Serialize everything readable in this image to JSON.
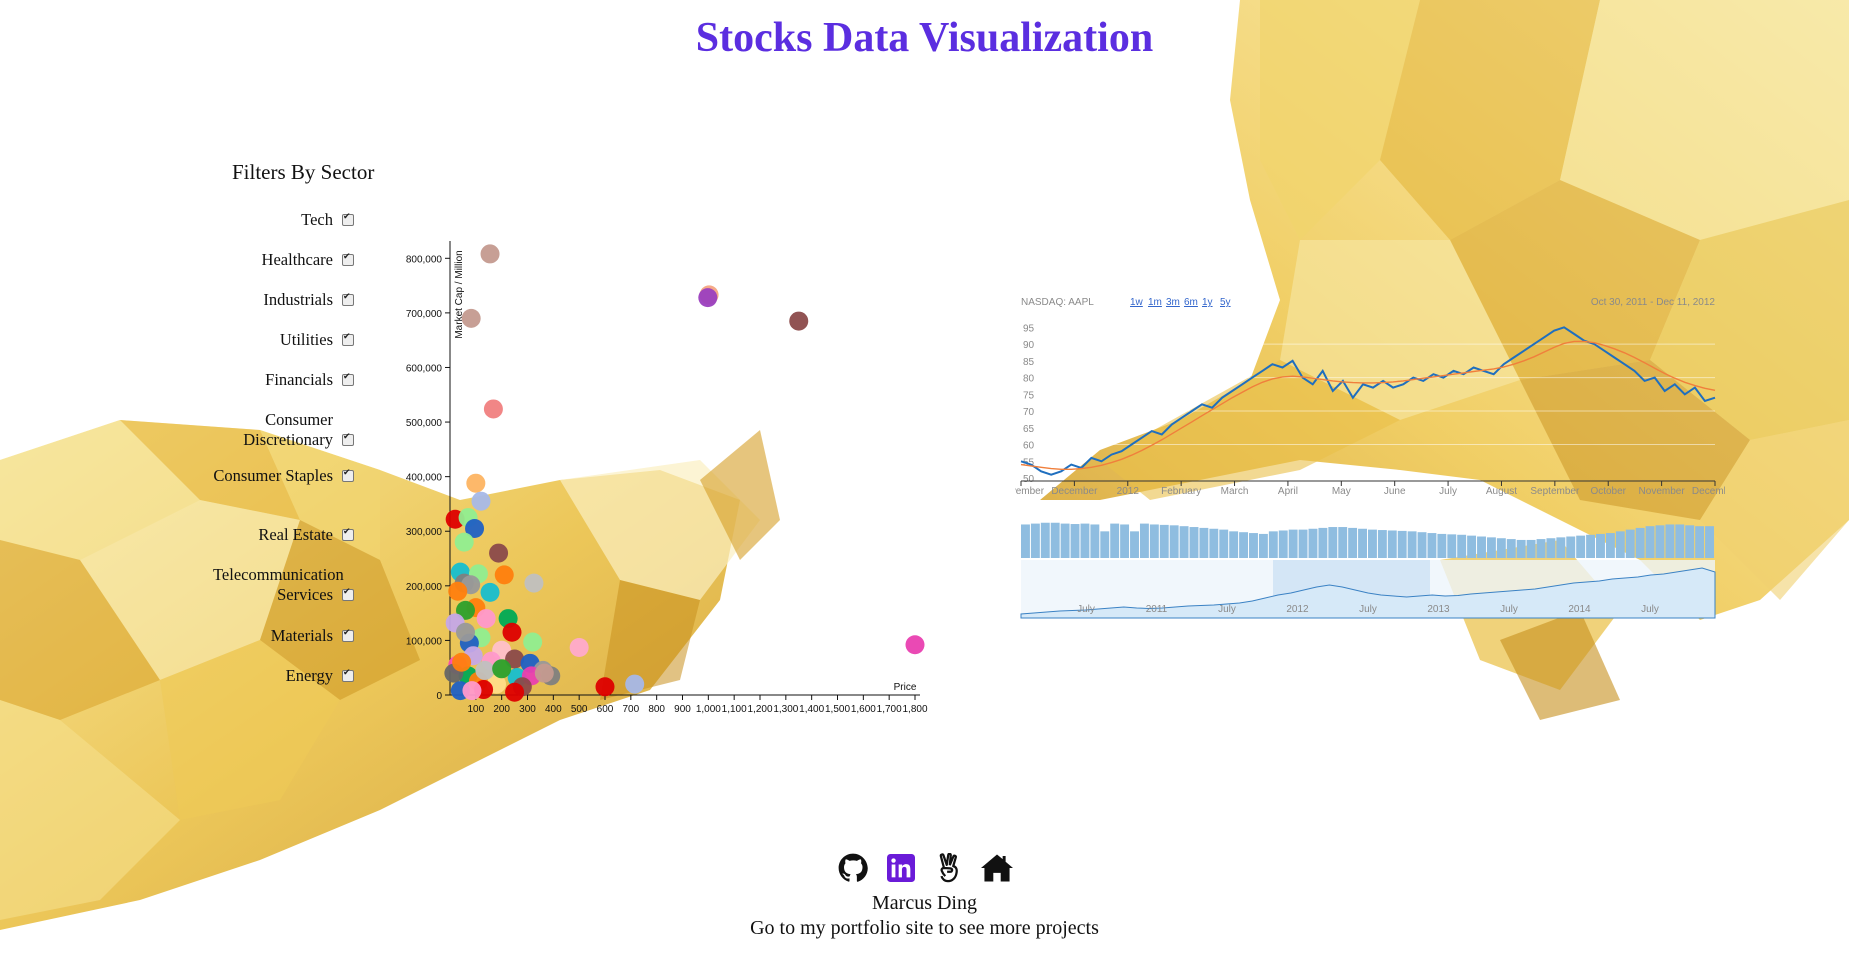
{
  "header": {
    "title": "Stocks Data Visualization"
  },
  "filters": {
    "title": "Filters By Sector",
    "items": [
      {
        "label": "Tech",
        "checked": true
      },
      {
        "label": "Healthcare",
        "checked": true
      },
      {
        "label": "Industrials",
        "checked": true
      },
      {
        "label": "Utilities",
        "checked": true
      },
      {
        "label": "Financials",
        "checked": true
      },
      {
        "label": "Consumer Discretionary",
        "checked": true
      },
      {
        "label": "Consumer Staples",
        "checked": true
      },
      {
        "label": "Real Estate",
        "checked": true
      },
      {
        "label": "Telecommunication Services",
        "checked": true
      },
      {
        "label": "Materials",
        "checked": true
      },
      {
        "label": "Energy",
        "checked": true
      }
    ]
  },
  "chart_data": [
    {
      "type": "scatter",
      "xlabel": "Price",
      "ylabel": "Market Cap / Million",
      "xlim": [
        0,
        1800
      ],
      "ylim": [
        0,
        800000
      ],
      "x_ticks": [
        "100",
        "200",
        "300",
        "400",
        "500",
        "600",
        "700",
        "800",
        "900",
        "1,000",
        "1,100",
        "1,200",
        "1,300",
        "1,400",
        "1,500",
        "1,600",
        "1,700",
        "1,800"
      ],
      "y_ticks": [
        "0",
        "100,000",
        "200,000",
        "300,000",
        "400,000",
        "500,000",
        "600,000",
        "700,000",
        "800,000"
      ],
      "points": [
        {
          "x": 155,
          "y": 808000,
          "c": "#c49a8f"
        },
        {
          "x": 82,
          "y": 690000,
          "c": "#c49a8f"
        },
        {
          "x": 168,
          "y": 524000,
          "c": "#f08080"
        },
        {
          "x": 1003,
          "y": 733000,
          "c": "#f4a582"
        },
        {
          "x": 998,
          "y": 728000,
          "c": "#9b3fbf"
        },
        {
          "x": 1350,
          "y": 685000,
          "c": "#8b4a4a"
        },
        {
          "x": 1800,
          "y": 92000,
          "c": "#e93fb0"
        },
        {
          "x": 100,
          "y": 388000,
          "c": "#fdb462"
        },
        {
          "x": 120,
          "y": 355000,
          "c": "#a6b8e8"
        },
        {
          "x": 20,
          "y": 322000,
          "c": "#dd0000"
        },
        {
          "x": 70,
          "y": 325000,
          "c": "#90ee90"
        },
        {
          "x": 95,
          "y": 305000,
          "c": "#1f60c4"
        },
        {
          "x": 55,
          "y": 280000,
          "c": "#90ee90"
        },
        {
          "x": 188,
          "y": 260000,
          "c": "#8b4a4a"
        },
        {
          "x": 40,
          "y": 225000,
          "c": "#17becf"
        },
        {
          "x": 110,
          "y": 222000,
          "c": "#90ee90"
        },
        {
          "x": 210,
          "y": 220000,
          "c": "#ff7f0e"
        },
        {
          "x": 55,
          "y": 205000,
          "c": "#7f7f7f"
        },
        {
          "x": 80,
          "y": 202000,
          "c": "#999999"
        },
        {
          "x": 325,
          "y": 205000,
          "c": "#c0c0c0"
        },
        {
          "x": 30,
          "y": 190000,
          "c": "#ff7f0e"
        },
        {
          "x": 155,
          "y": 188000,
          "c": "#17becf"
        },
        {
          "x": 100,
          "y": 160000,
          "c": "#ff7f0e"
        },
        {
          "x": 60,
          "y": 155000,
          "c": "#2ca02c"
        },
        {
          "x": 140,
          "y": 140000,
          "c": "#ff99cc"
        },
        {
          "x": 20,
          "y": 132000,
          "c": "#c5a8e8"
        },
        {
          "x": 225,
          "y": 140000,
          "c": "#00aa55"
        },
        {
          "x": 240,
          "y": 115000,
          "c": "#dd0000"
        },
        {
          "x": 120,
          "y": 105000,
          "c": "#90ee90"
        },
        {
          "x": 75,
          "y": 95000,
          "c": "#1f60c4"
        },
        {
          "x": 320,
          "y": 97000,
          "c": "#90ee90"
        },
        {
          "x": 500,
          "y": 87000,
          "c": "#ffaacc"
        },
        {
          "x": 200,
          "y": 82000,
          "c": "#ffc0cb"
        },
        {
          "x": 250,
          "y": 66000,
          "c": "#8b4a4a"
        },
        {
          "x": 90,
          "y": 72000,
          "c": "#c5a8e8"
        },
        {
          "x": 160,
          "y": 62000,
          "c": "#ff99cc"
        },
        {
          "x": 310,
          "y": 58000,
          "c": "#1f60c4"
        },
        {
          "x": 30,
          "y": 55000,
          "c": "#ff4fb0"
        },
        {
          "x": 360,
          "y": 45000,
          "c": "#999999"
        },
        {
          "x": 390,
          "y": 35000,
          "c": "#7f7f7f"
        },
        {
          "x": 70,
          "y": 35000,
          "c": "#00aa55"
        },
        {
          "x": 260,
          "y": 32000,
          "c": "#17becf"
        },
        {
          "x": 315,
          "y": 35000,
          "c": "#e93fb0"
        },
        {
          "x": 365,
          "y": 40000,
          "c": "#c49a8f"
        },
        {
          "x": 110,
          "y": 25000,
          "c": "#ff7f0e"
        },
        {
          "x": 180,
          "y": 20000,
          "c": "#ffdd88"
        },
        {
          "x": 280,
          "y": 15000,
          "c": "#8b4a4a"
        },
        {
          "x": 600,
          "y": 15000,
          "c": "#dd0000"
        },
        {
          "x": 715,
          "y": 20000,
          "c": "#a6b8e8"
        },
        {
          "x": 15,
          "y": 40000,
          "c": "#666666"
        },
        {
          "x": 45,
          "y": 60000,
          "c": "#ff7f0e"
        },
        {
          "x": 135,
          "y": 45000,
          "c": "#c0c0c0"
        },
        {
          "x": 200,
          "y": 48000,
          "c": "#2ca02c"
        },
        {
          "x": 60,
          "y": 115000,
          "c": "#999999"
        },
        {
          "x": 130,
          "y": 10000,
          "c": "#dd0000"
        },
        {
          "x": 250,
          "y": 5000,
          "c": "#dd0000"
        },
        {
          "x": 40,
          "y": 8000,
          "c": "#1f60c4"
        },
        {
          "x": 85,
          "y": 8000,
          "c": "#ff99cc"
        }
      ]
    },
    {
      "type": "line",
      "title": "NASDAQ: AAPL",
      "range_buttons": [
        "1w",
        "1m",
        "3m",
        "6m",
        "1y",
        "5y"
      ],
      "date_range": "Oct 30, 2011 - Dec 11, 2012",
      "y_ticks": [
        50,
        55,
        60,
        65,
        70,
        75,
        80,
        85,
        90,
        95
      ],
      "x_ticks": [
        "November",
        "December",
        "2012",
        "February",
        "March",
        "April",
        "May",
        "June",
        "July",
        "August",
        "September",
        "October",
        "November",
        "December"
      ],
      "nav_ticks": [
        "July",
        "2011",
        "July",
        "2012",
        "July",
        "2013",
        "July",
        "2014",
        "July"
      ],
      "ylim": [
        50,
        96
      ],
      "series": [
        {
          "name": "price",
          "color": "#1f6fbf",
          "values": [
            55,
            54,
            52,
            51,
            52,
            54,
            53,
            56,
            55,
            57,
            58,
            60,
            62,
            64,
            63,
            66,
            68,
            70,
            72,
            71,
            74,
            76,
            78,
            80,
            82,
            84,
            83,
            85,
            80,
            78,
            82,
            76,
            79,
            74,
            78,
            77,
            79,
            77,
            78,
            80,
            79,
            81,
            80,
            82,
            81,
            83,
            82,
            81,
            84,
            86,
            88,
            90,
            92,
            94,
            95,
            93,
            91,
            90,
            88,
            86,
            84,
            82,
            79,
            80,
            76,
            78,
            75,
            77,
            73,
            74
          ]
        },
        {
          "name": "avg",
          "color": "#f07f3c",
          "values": [
            54,
            53.6,
            53.2,
            52.8,
            52.6,
            52.6,
            52.8,
            53.2,
            53.8,
            54.6,
            55.6,
            56.8,
            58.2,
            59.8,
            61.4,
            63.2,
            65,
            66.8,
            68.6,
            70.4,
            72.2,
            74,
            75.6,
            77.2,
            78.6,
            79.6,
            80.2,
            80.4,
            80.2,
            79.8,
            79.4,
            79,
            78.7,
            78.5,
            78.4,
            78.4,
            78.5,
            78.7,
            79,
            79.4,
            79.8,
            80.2,
            80.6,
            81,
            81.4,
            81.8,
            82.2,
            82.6,
            83.2,
            84,
            85,
            86.2,
            87.6,
            89,
            90.2,
            90.8,
            90.8,
            90.4,
            89.6,
            88.6,
            87.4,
            86,
            84.4,
            82.8,
            81.2,
            79.8,
            78.6,
            77.6,
            76.8,
            76.2
          ]
        }
      ],
      "volume": [
        0.78,
        0.8,
        0.82,
        0.82,
        0.8,
        0.79,
        0.8,
        0.78,
        0.62,
        0.8,
        0.78,
        0.62,
        0.8,
        0.78,
        0.77,
        0.76,
        0.74,
        0.72,
        0.7,
        0.68,
        0.66,
        0.62,
        0.6,
        0.58,
        0.56,
        0.62,
        0.64,
        0.66,
        0.66,
        0.68,
        0.7,
        0.72,
        0.72,
        0.7,
        0.68,
        0.66,
        0.65,
        0.64,
        0.63,
        0.62,
        0.6,
        0.58,
        0.56,
        0.55,
        0.54,
        0.52,
        0.5,
        0.48,
        0.46,
        0.44,
        0.42,
        0.42,
        0.44,
        0.46,
        0.48,
        0.5,
        0.52,
        0.54,
        0.56,
        0.58,
        0.62,
        0.66,
        0.7,
        0.74,
        0.76,
        0.78,
        0.78,
        0.76,
        0.74,
        0.74
      ],
      "navigator": [
        0.08,
        0.1,
        0.12,
        0.14,
        0.15,
        0.16,
        0.18,
        0.2,
        0.22,
        0.2,
        0.19,
        0.2,
        0.22,
        0.24,
        0.25,
        0.26,
        0.28,
        0.3,
        0.34,
        0.4,
        0.46,
        0.5,
        0.56,
        0.62,
        0.66,
        0.62,
        0.56,
        0.5,
        0.46,
        0.44,
        0.42,
        0.44,
        0.46,
        0.44,
        0.45,
        0.48,
        0.5,
        0.52,
        0.54,
        0.56,
        0.58,
        0.62,
        0.66,
        0.7,
        0.72,
        0.74,
        0.78,
        0.8,
        0.82,
        0.86,
        0.88,
        0.92,
        0.96,
        1.0,
        0.92
      ]
    }
  ],
  "footer": {
    "icons": [
      {
        "name": "github-icon"
      },
      {
        "name": "linkedin-icon"
      },
      {
        "name": "angellist-icon"
      },
      {
        "name": "home-icon"
      }
    ],
    "author": "Marcus Ding",
    "portfolio_text": "Go to my portfolio site to see more projects"
  }
}
